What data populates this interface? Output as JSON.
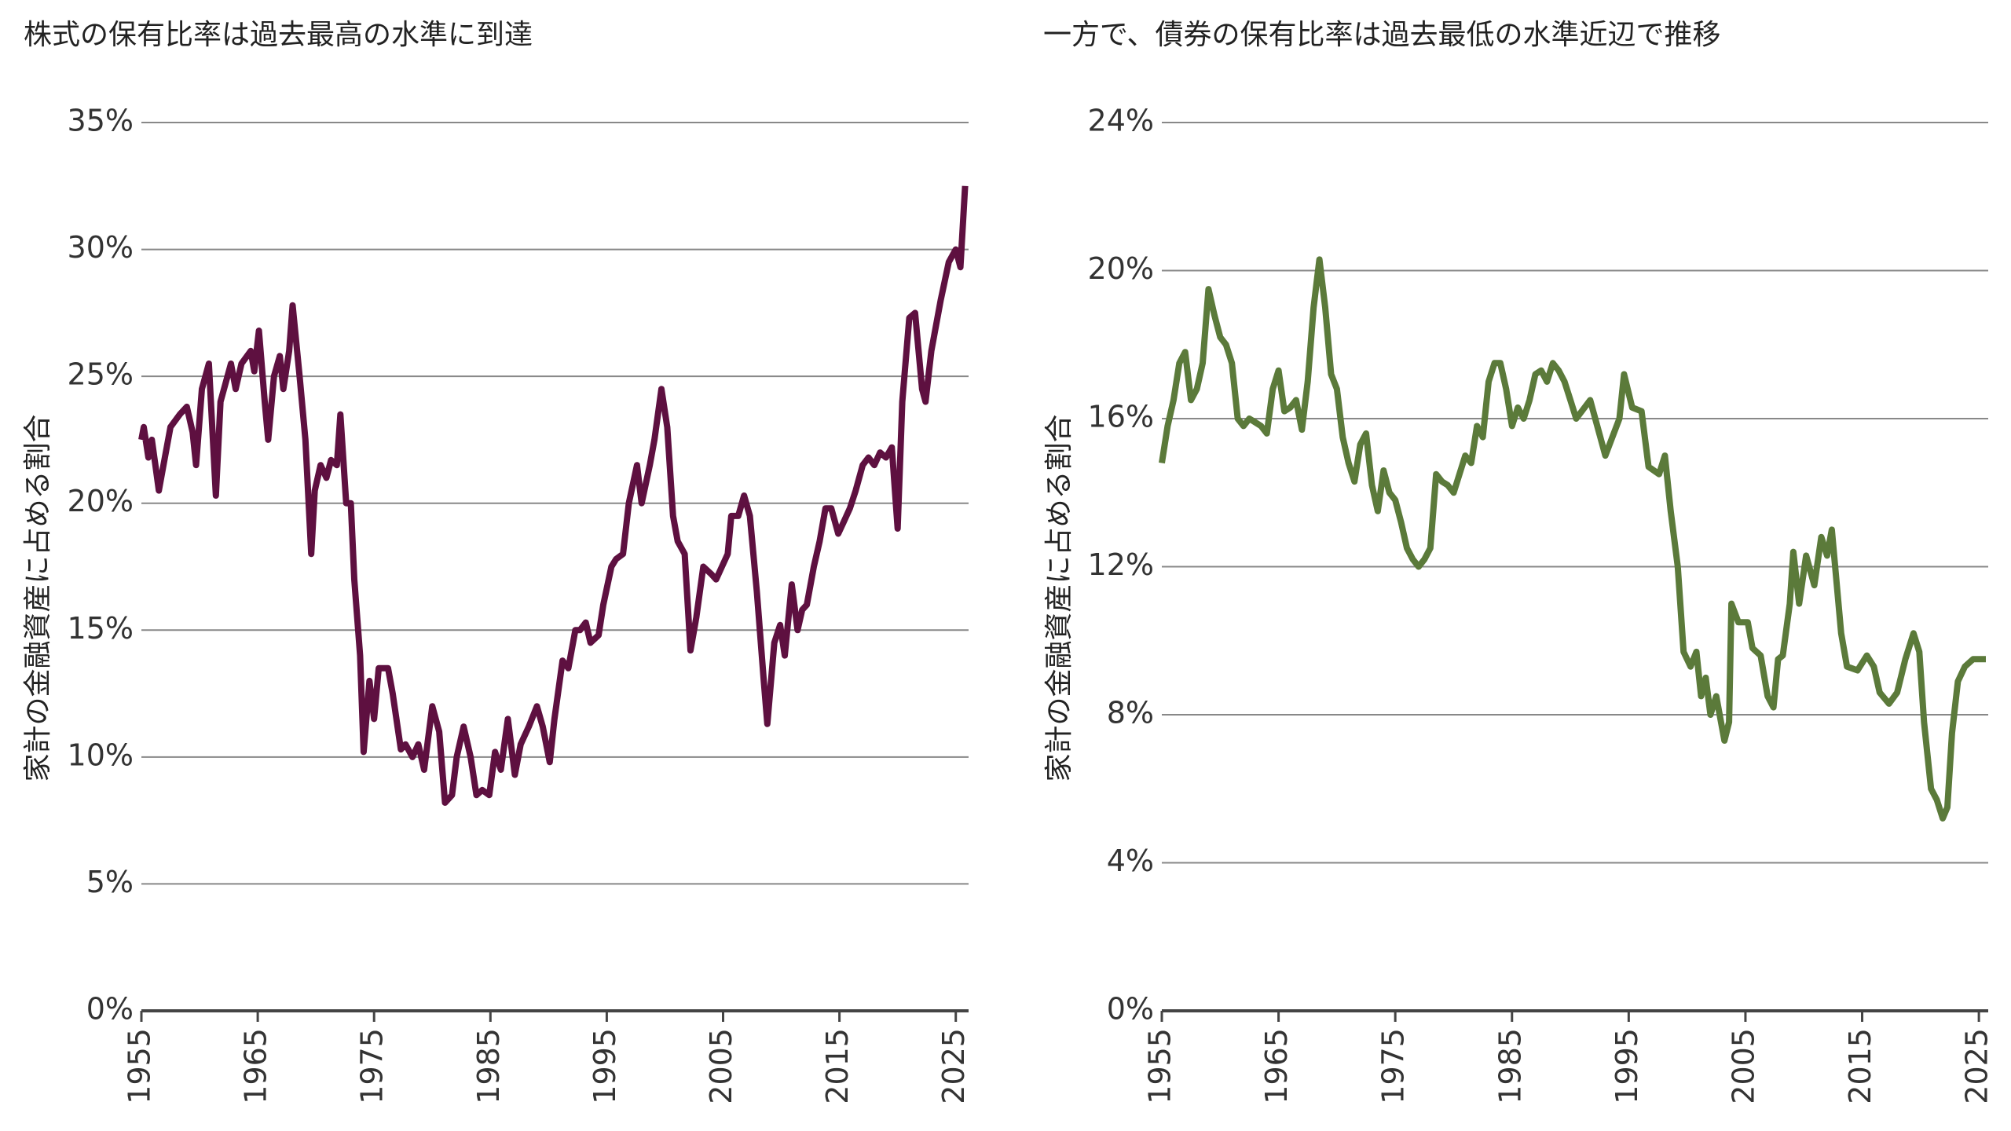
{
  "chart_data": [
    {
      "type": "line",
      "title": "株式の保有比率は過去最高の水準に到達",
      "y_label": "家計の金融資産に占める割合",
      "xlim": [
        1955,
        2026.1
      ],
      "xticks": [
        1955,
        1965,
        1975,
        1985,
        1995,
        2005,
        2015,
        2025
      ],
      "ylim": [
        0,
        35
      ],
      "yticks": [
        {
          "value": 0,
          "label": "0%"
        },
        {
          "value": 5,
          "label": "5%"
        },
        {
          "value": 10,
          "label": "10%"
        },
        {
          "value": 15,
          "label": "15%"
        },
        {
          "value": 20,
          "label": "20%"
        },
        {
          "value": 25,
          "label": "25%"
        },
        {
          "value": 30,
          "label": "30%"
        },
        {
          "value": 35,
          "label": "35%"
        }
      ],
      "grid": true,
      "series": [
        {
          "name": "株式",
          "color": "#5e1040",
          "x": [
            1955.0,
            1955.2,
            1955.6,
            1955.9,
            1956.2,
            1956.5,
            1956.9,
            1957.5,
            1958.3,
            1958.9,
            1959.4,
            1959.7,
            1960.2,
            1960.8,
            1961.4,
            1961.8,
            1962.7,
            1963.1,
            1963.6,
            1964.4,
            1964.7,
            1965.1,
            1965.6,
            1965.9,
            1966.4,
            1966.9,
            1967.2,
            1967.7,
            1968.0,
            1968.6,
            1969.1,
            1969.6,
            1969.9,
            1970.4,
            1970.9,
            1971.3,
            1971.8,
            1972.1,
            1972.6,
            1973.0,
            1973.3,
            1973.8,
            1974.1,
            1974.6,
            1975.0,
            1975.4,
            1976.2,
            1976.6,
            1977.3,
            1977.7,
            1978.3,
            1978.8,
            1979.3,
            1980.0,
            1980.6,
            1981.1,
            1981.7,
            1982.1,
            1982.7,
            1983.3,
            1983.8,
            1984.3,
            1984.9,
            1985.4,
            1985.9,
            1986.5,
            1987.1,
            1987.6,
            1988.3,
            1989.0,
            1989.5,
            1990.1,
            1990.5,
            1991.2,
            1991.7,
            1992.3,
            1992.7,
            1993.2,
            1993.6,
            1994.3,
            1994.7,
            1995.4,
            1995.8,
            1996.4,
            1996.9,
            1997.6,
            1998.0,
            1998.7,
            1999.1,
            1999.7,
            2000.2,
            2000.7,
            2001.1,
            2001.7,
            2002.2,
            2002.7,
            2003.3,
            2004.0,
            2004.4,
            2004.9,
            2005.4,
            2005.7,
            2006.3,
            2006.8,
            2007.3,
            2007.9,
            2008.5,
            2008.8,
            2009.4,
            2009.9,
            2010.3,
            2010.9,
            2011.4,
            2011.8,
            2012.2,
            2012.8,
            2013.3,
            2013.8,
            2014.3,
            2014.9,
            2015.3,
            2015.9,
            2016.4,
            2017.0,
            2017.5,
            2018.0,
            2018.5,
            2019.0,
            2019.5,
            2020.0,
            2020.4,
            2021.0,
            2021.5,
            2022.1,
            2022.4,
            2022.9,
            2023.7,
            2024.4,
            2025.0,
            2025.4,
            2025.8
          ],
          "values": [
            22.5,
            23,
            21.8,
            22.5,
            21.5,
            20.5,
            21.5,
            23,
            23.5,
            23.8,
            22.8,
            21.5,
            24.5,
            25.5,
            20.3,
            24,
            25.5,
            24.5,
            25.5,
            26,
            25.2,
            26.8,
            24,
            22.5,
            25,
            25.8,
            24.5,
            26,
            27.8,
            25,
            22.5,
            18,
            20.5,
            21.5,
            21,
            21.7,
            21.5,
            23.5,
            20,
            20,
            17,
            14,
            10.2,
            13,
            11.5,
            13.5,
            13.5,
            12.5,
            10.3,
            10.5,
            10,
            10.5,
            9.5,
            12,
            11,
            8.2,
            8.5,
            10,
            11.2,
            10,
            8.5,
            8.7,
            8.5,
            10.2,
            9.5,
            11.5,
            9.3,
            10.5,
            11.2,
            12,
            11.2,
            9.8,
            11.5,
            13.8,
            13.5,
            15,
            15,
            15.3,
            14.5,
            14.8,
            16,
            17.5,
            17.8,
            18,
            20,
            21.5,
            20,
            21.5,
            22.5,
            24.5,
            23,
            19.5,
            18.5,
            18,
            14.2,
            15.5,
            17.5,
            17.2,
            17,
            17.5,
            18,
            19.5,
            19.5,
            20.3,
            19.5,
            16.5,
            13,
            11.3,
            14.5,
            15.2,
            14,
            16.8,
            15,
            15.8,
            16,
            17.5,
            18.5,
            19.8,
            19.8,
            18.8,
            19.2,
            19.8,
            20.5,
            21.5,
            21.8,
            21.5,
            22,
            21.8,
            22.2,
            19,
            24,
            27.3,
            27.5,
            24.5,
            24,
            26,
            28,
            29.5,
            30,
            29.3,
            32.5
          ]
        }
      ]
    },
    {
      "type": "line",
      "title": "一方で、債券の保有比率は過去最低の水準近辺で推移",
      "y_label": "家計の金融資産に占める割合",
      "xlim": [
        1955,
        2025.8
      ],
      "xticks": [
        1955,
        1965,
        1975,
        1985,
        1995,
        2005,
        2015,
        2025
      ],
      "ylim": [
        0,
        24
      ],
      "yticks": [
        {
          "value": 0,
          "label": "0%"
        },
        {
          "value": 4,
          "label": "4%"
        },
        {
          "value": 8,
          "label": "8%"
        },
        {
          "value": 12,
          "label": "12%"
        },
        {
          "value": 16,
          "label": "16%"
        },
        {
          "value": 20,
          "label": "20%"
        },
        {
          "value": 24,
          "label": "24%"
        }
      ],
      "grid": true,
      "series": [
        {
          "name": "債券",
          "color": "#5b7a3a",
          "x": [
            1955,
            1955.5,
            1956,
            1956.5,
            1957,
            1957.5,
            1958,
            1958.5,
            1959,
            1959.5,
            1960,
            1960.5,
            1961,
            1961.5,
            1962,
            1962.5,
            1963,
            1963.5,
            1964,
            1964.5,
            1965,
            1965.5,
            1966,
            1966.5,
            1967,
            1967.5,
            1968,
            1968.5,
            1969,
            1969.5,
            1970,
            1970.5,
            1971,
            1971.5,
            1972,
            1972.5,
            1973,
            1973.5,
            1974,
            1974.5,
            1975,
            1975.5,
            1976,
            1976.5,
            1977,
            1977.5,
            1978,
            1978.5,
            1979,
            1979.5,
            1980,
            1980.5,
            1981,
            1981.5,
            1982,
            1982.5,
            1983,
            1983.5,
            1984,
            1984.5,
            1985,
            1985.5,
            1986,
            1986.5,
            1987,
            1987.5,
            1988,
            1988.5,
            1989,
            1989.5,
            1990,
            1990.5,
            1991.7,
            1993,
            1994.2,
            1994.6,
            1995.3,
            1996.1,
            1996.7,
            1997.6,
            1998.1,
            1998.6,
            1999.2,
            1999.7,
            2000.3,
            2000.8,
            2001.2,
            2001.6,
            2002,
            2002.5,
            2003.2,
            2003.6,
            2003.8,
            2004.4,
            2005.2,
            2005.6,
            2006.3,
            2006.9,
            2007.4,
            2007.8,
            2008.2,
            2008.8,
            2009.1,
            2009.6,
            2010.2,
            2010.9,
            2011.5,
            2012,
            2012.4,
            2013.2,
            2013.7,
            2014.6,
            2015.4,
            2016,
            2016.5,
            2017.3,
            2018,
            2018.7,
            2019.4,
            2019.9,
            2020.3,
            2020.9,
            2021.4,
            2021.9,
            2022.3,
            2022.7,
            2023.2,
            2023.8,
            2024.5,
            2025.6
          ],
          "values": [
            14.8,
            15.8,
            16.5,
            17.5,
            17.8,
            16.5,
            16.8,
            17.5,
            19.5,
            18.8,
            18.2,
            18,
            17.5,
            16,
            15.8,
            16,
            15.9,
            15.8,
            15.6,
            16.8,
            17.3,
            16.2,
            16.3,
            16.5,
            15.7,
            17,
            19,
            20.3,
            19,
            17.2,
            16.8,
            15.5,
            14.8,
            14.3,
            15.3,
            15.6,
            14.2,
            13.5,
            14.6,
            14,
            13.8,
            13.2,
            12.5,
            12.2,
            12,
            12.2,
            12.5,
            14.5,
            14.3,
            14.2,
            14,
            14.5,
            15,
            14.8,
            15.8,
            15.5,
            17,
            17.5,
            17.5,
            16.8,
            15.8,
            16.3,
            16,
            16.5,
            17.2,
            17.3,
            17,
            17.5,
            17.3,
            17,
            16.5,
            16,
            16.5,
            15,
            16,
            17.2,
            16.3,
            16.2,
            14.7,
            14.5,
            15,
            13.5,
            12,
            9.7,
            9.3,
            9.7,
            8.5,
            9,
            8,
            8.5,
            7.3,
            7.8,
            11,
            10.5,
            10.5,
            9.8,
            9.6,
            8.5,
            8.2,
            9.5,
            9.6,
            11,
            12.4,
            11,
            12.3,
            11.5,
            12.8,
            12.3,
            13,
            10.2,
            9.3,
            9.2,
            9.6,
            9.3,
            8.6,
            8.3,
            8.6,
            9.5,
            10.2,
            9.7,
            7.8,
            6,
            5.7,
            5.2,
            5.5,
            7.5,
            8.9,
            9.3,
            9.5,
            9.5
          ]
        }
      ]
    }
  ]
}
